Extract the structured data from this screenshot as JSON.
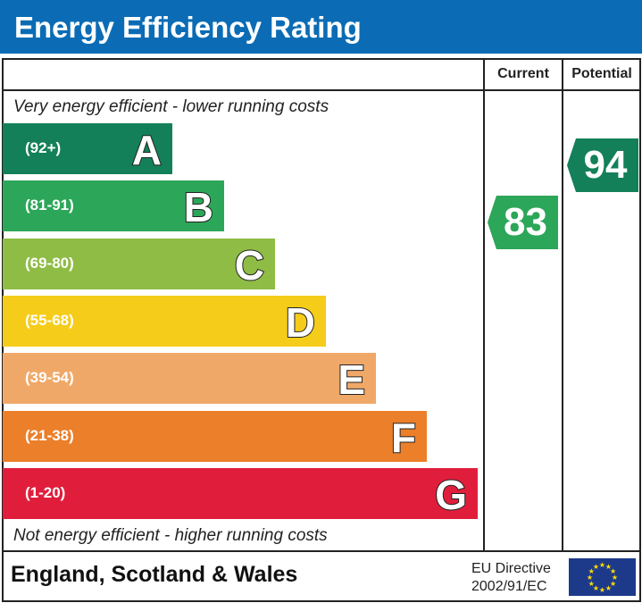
{
  "title": "Energy Efficiency Rating",
  "columns": {
    "current": "Current",
    "potential": "Potential"
  },
  "top_note": "Very energy efficient - lower running costs",
  "bottom_note": "Not energy efficient - higher running costs",
  "footer": {
    "region": "England, Scotland & Wales",
    "directive_line1": "EU Directive",
    "directive_line2": "2002/91/EC",
    "flag": "eu-flag-icon"
  },
  "chart_data": {
    "type": "bar",
    "bands": [
      {
        "letter": "A",
        "range": "(92+)",
        "color": "#138059"
      },
      {
        "letter": "B",
        "range": "(81-91)",
        "color": "#2ca658"
      },
      {
        "letter": "C",
        "range": "(69-80)",
        "color": "#8fbc45"
      },
      {
        "letter": "D",
        "range": "(55-68)",
        "color": "#f5cc1a"
      },
      {
        "letter": "E",
        "range": "(39-54)",
        "color": "#f0a868"
      },
      {
        "letter": "F",
        "range": "(21-38)",
        "color": "#ec7f2a"
      },
      {
        "letter": "G",
        "range": "(1-20)",
        "color": "#e01e3c"
      }
    ],
    "current": {
      "value": "83",
      "band": "B",
      "color": "#2ca658"
    },
    "potential": {
      "value": "94",
      "band": "A",
      "color": "#138059"
    }
  }
}
